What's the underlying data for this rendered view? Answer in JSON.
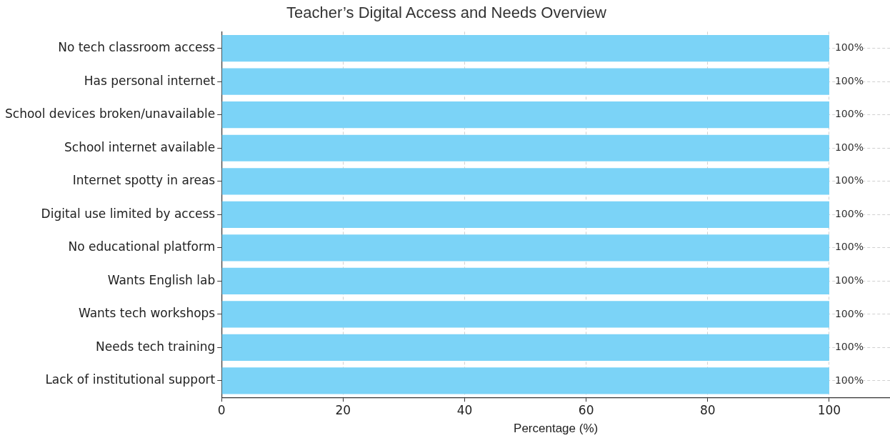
{
  "chart_data": {
    "type": "bar",
    "orientation": "horizontal",
    "title": "Teacher’s Digital Access and Needs Overview",
    "xlabel": "Percentage (%)",
    "categories": [
      "No tech classroom access",
      "Has personal internet",
      "School devices broken/unavailable",
      "School internet available",
      "Internet spotty in areas",
      "Digital use limited by access",
      "No educational platform",
      "Wants English lab",
      "Wants tech workshops",
      "Needs tech training",
      "Lack of institutional support"
    ],
    "values": [
      100,
      100,
      100,
      100,
      100,
      100,
      100,
      100,
      100,
      100,
      100
    ],
    "value_labels": [
      "100%",
      "100%",
      "100%",
      "100%",
      "100%",
      "100%",
      "100%",
      "100%",
      "100%",
      "100%",
      "100%"
    ],
    "color": "#7bd3f7",
    "xlim": [
      0,
      110
    ],
    "xticks": [
      0,
      20,
      40,
      60,
      80,
      100
    ],
    "grid": true,
    "legend": false
  }
}
